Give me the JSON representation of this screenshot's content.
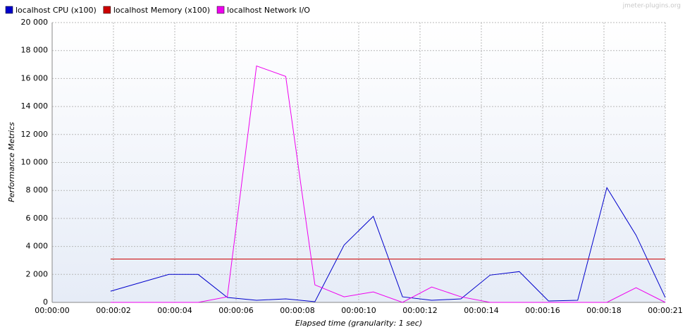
{
  "chart_data": {
    "type": "line",
    "watermark": "jmeter-plugins.org",
    "xlabel": "Elapsed time (granularity: 1 sec)",
    "ylabel": "Performance Metrics",
    "x": [
      2,
      4,
      5,
      6,
      7,
      8,
      9,
      10,
      11,
      12,
      13,
      14,
      15,
      16,
      17,
      18,
      19,
      20,
      21
    ],
    "series": [
      {
        "name": "localhost CPU (x100)",
        "color": "#0000cc",
        "values": [
          800,
          2000,
          2000,
          350,
          150,
          250,
          50,
          4100,
          6150,
          400,
          150,
          250,
          1950,
          2200,
          100,
          150,
          8200,
          4800,
          350
        ]
      },
      {
        "name": "localhost Memory (x100)",
        "color": "#cc0000",
        "values": [
          3100,
          3100,
          3100,
          3100,
          3100,
          3100,
          3100,
          3100,
          3100,
          3100,
          3100,
          3100,
          3100,
          3100,
          3100,
          3100,
          3100,
          3100,
          3100
        ]
      },
      {
        "name": "localhost Network I/O",
        "color": "#ee00ee",
        "values": [
          0,
          0,
          0,
          400,
          16900,
          16150,
          1250,
          400,
          750,
          0,
          1100,
          400,
          0,
          0,
          0,
          0,
          0,
          1050,
          0
        ]
      }
    ],
    "xlim": [
      0,
      21
    ],
    "xticks": [
      {
        "value": 0,
        "label": "00:00:00"
      },
      {
        "value": 2.1,
        "label": "00:00:02"
      },
      {
        "value": 4.2,
        "label": "00:00:04"
      },
      {
        "value": 6.3,
        "label": "00:00:06"
      },
      {
        "value": 8.4,
        "label": "00:00:08"
      },
      {
        "value": 10.5,
        "label": "00:00:10"
      },
      {
        "value": 12.6,
        "label": "00:00:12"
      },
      {
        "value": 14.7,
        "label": "00:00:14"
      },
      {
        "value": 16.8,
        "label": "00:00:16"
      },
      {
        "value": 18.9,
        "label": "00:00:18"
      },
      {
        "value": 21,
        "label": "00:00:21"
      }
    ],
    "ylim": [
      0,
      20000
    ],
    "yticks": [
      0,
      {
        "value": 2000,
        "label": "2 000"
      },
      {
        "value": 4000,
        "label": "4 000"
      },
      {
        "value": 6000,
        "label": "6 000"
      },
      {
        "value": 8000,
        "label": "8 000"
      },
      {
        "value": 10000,
        "label": "10 000"
      },
      {
        "value": 12000,
        "label": "12 000"
      },
      {
        "value": 14000,
        "label": "14 000"
      },
      {
        "value": 16000,
        "label": "16 000"
      },
      {
        "value": 18000,
        "label": "18 000"
      },
      {
        "value": 20000,
        "label": "20 000"
      }
    ],
    "grid": true,
    "legend": "top-left"
  }
}
